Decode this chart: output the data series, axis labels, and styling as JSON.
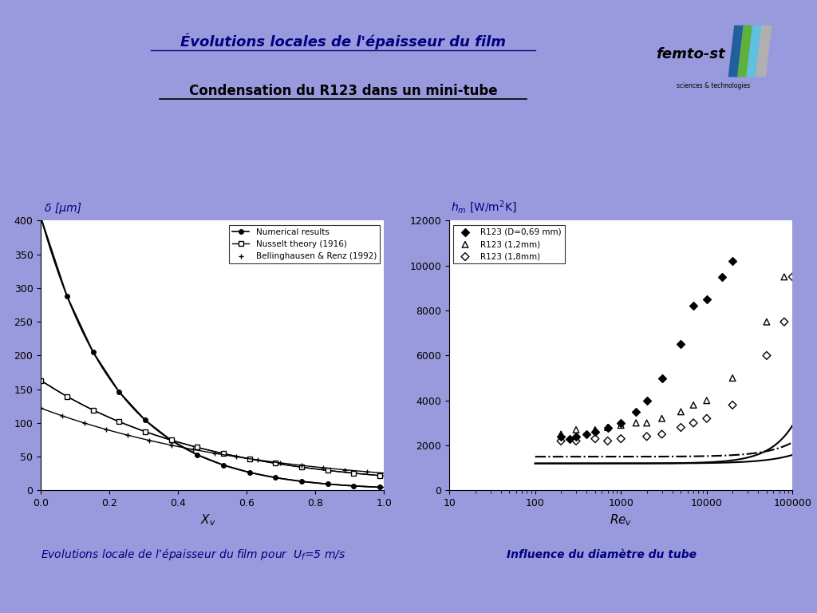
{
  "background_color": "#9999dd",
  "title": "Évolutions locales de l'épaisseur du film",
  "subtitle": "Condensation du R123 dans un mini-tube",
  "left_ylabel": "δ [μm]",
  "left_xlabel": "X_v",
  "left_caption": "Evolutions locale de l’épaisseur du film pour  U_f=5 m/s",
  "right_ylabel": "h_m [W/m²K]",
  "right_xlabel": "Re_v",
  "right_caption": "Influence du diamètre du tube",
  "left_legend": [
    "Numerical results",
    "Nusselt theory (1916)",
    "Bellinghausen & Renz (1992)"
  ],
  "right_legend": [
    "R123 (D=0,69 mm)",
    "R123 (1,2mm)",
    "R123 (1,8mm)"
  ]
}
